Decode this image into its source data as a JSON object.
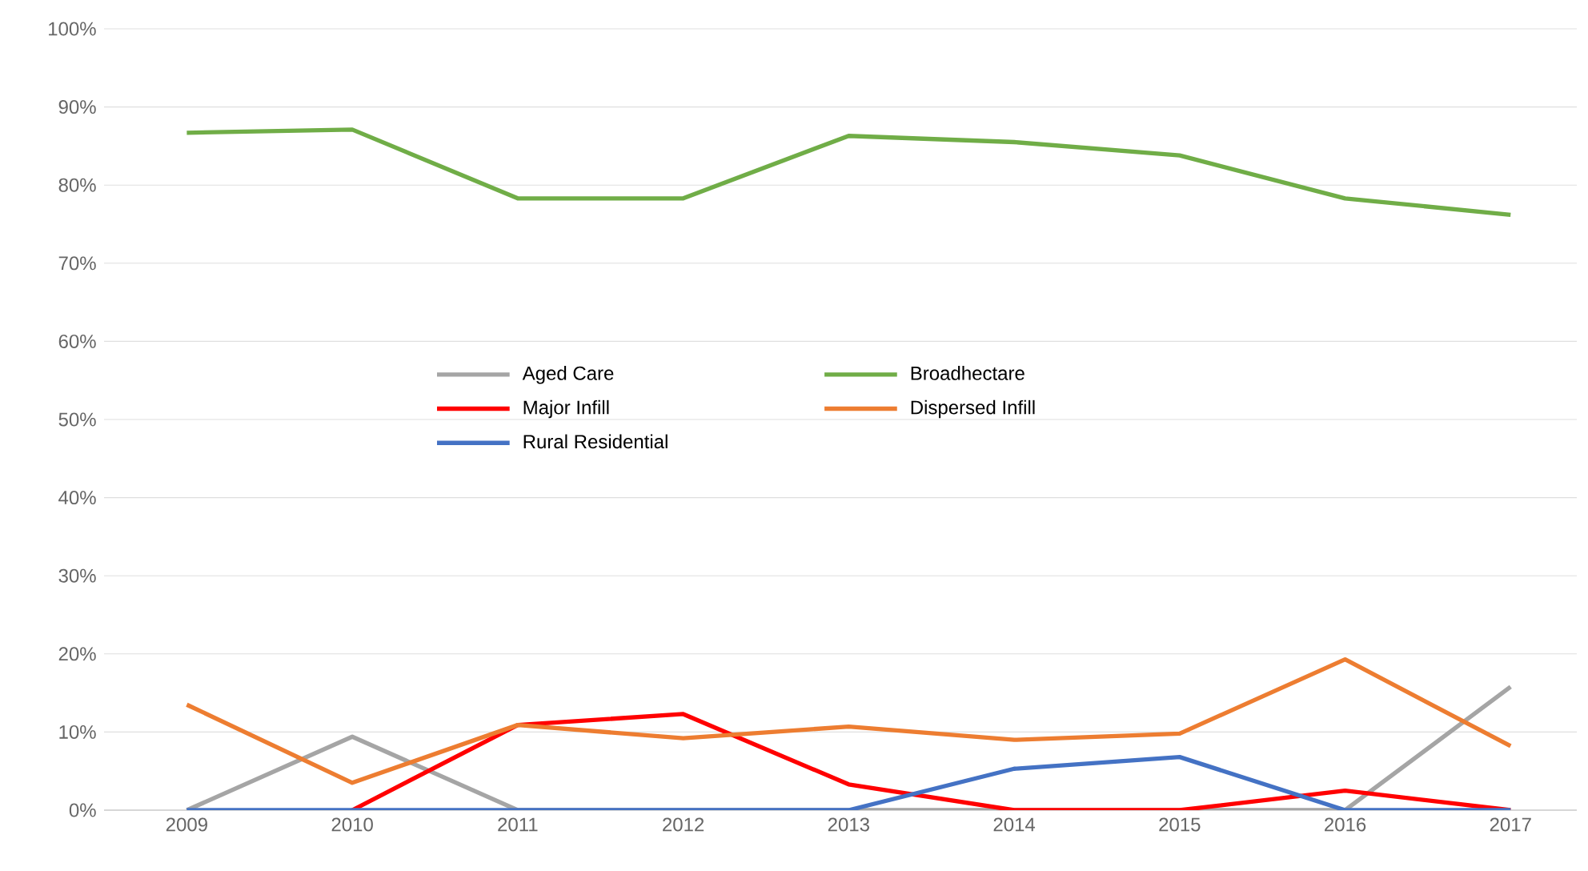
{
  "chart_data": {
    "type": "line",
    "categories": [
      "2009",
      "2010",
      "2011",
      "2012",
      "2013",
      "2014",
      "2015",
      "2016",
      "2017"
    ],
    "series": [
      {
        "name": "Aged Care",
        "color": "#a5a5a5",
        "values": [
          0,
          9.4,
          0,
          0,
          0,
          0,
          0,
          0,
          15.8
        ]
      },
      {
        "name": "Broadhectare",
        "color": "#70ad47",
        "values": [
          86.7,
          87.1,
          78.3,
          78.3,
          86.3,
          85.5,
          83.8,
          78.3,
          76.2
        ]
      },
      {
        "name": "Major Infill",
        "color": "#ff0000",
        "values": [
          null,
          0,
          10.9,
          12.3,
          3.3,
          0,
          0,
          2.5,
          0
        ]
      },
      {
        "name": "Dispersed Infill",
        "color": "#ed7d31",
        "values": [
          13.5,
          3.5,
          10.9,
          9.2,
          10.7,
          9.0,
          9.8,
          19.3,
          8.2
        ]
      },
      {
        "name": "Rural Residential",
        "color": "#4472c4",
        "values": [
          0,
          0,
          0,
          0,
          0,
          5.3,
          6.8,
          0,
          0
        ]
      }
    ],
    "ylim": [
      0,
      100
    ],
    "yticks": [
      {
        "value": 0,
        "label": "0%"
      },
      {
        "value": 10,
        "label": "10%"
      },
      {
        "value": 20,
        "label": "20%"
      },
      {
        "value": 30,
        "label": "30%"
      },
      {
        "value": 40,
        "label": "40%"
      },
      {
        "value": 50,
        "label": "50%"
      },
      {
        "value": 60,
        "label": "60%"
      },
      {
        "value": 70,
        "label": "70%"
      },
      {
        "value": 80,
        "label": "80%"
      },
      {
        "value": 90,
        "label": "90%"
      },
      {
        "value": 100,
        "label": "100%"
      }
    ],
    "grid": "y",
    "legend": "center",
    "marker": "none",
    "line_style": "solid"
  }
}
